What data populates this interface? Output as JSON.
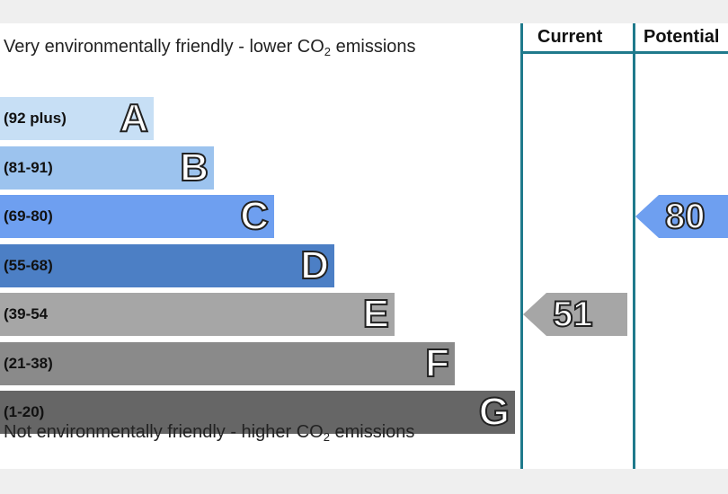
{
  "chart_data": {
    "type": "bar",
    "top_caption": "Very environmentally friendly - lower CO",
    "top_caption_sub": "2",
    "top_caption_end": " emissions",
    "bottom_caption": "Not environmentally friendly - higher CO",
    "bottom_caption_sub": "2",
    "bottom_caption_end": " emissions",
    "bands": [
      {
        "letter": "A",
        "range": "(92 plus)",
        "color": "#c7dff5"
      },
      {
        "letter": "B",
        "range": "(81-91)",
        "color": "#9cc3ee"
      },
      {
        "letter": "C",
        "range": "(69-80)",
        "color": "#6e9ff0"
      },
      {
        "letter": "D",
        "range": "(55-68)",
        "color": "#4c7fc5"
      },
      {
        "letter": "E",
        "range": "(39-54",
        "color": "#a6a6a6"
      },
      {
        "letter": "F",
        "range": "(21-38)",
        "color": "#8a8a8a"
      },
      {
        "letter": "G",
        "range": "(1-20)",
        "color": "#666666"
      }
    ],
    "columns": [
      "Current",
      "Potential"
    ],
    "current": {
      "value": 51,
      "band": "E",
      "color": "#a6a6a6"
    },
    "potential": {
      "value": 80,
      "band": "C",
      "color": "#6e9ff0"
    },
    "line_color": "#1f7a8c"
  }
}
